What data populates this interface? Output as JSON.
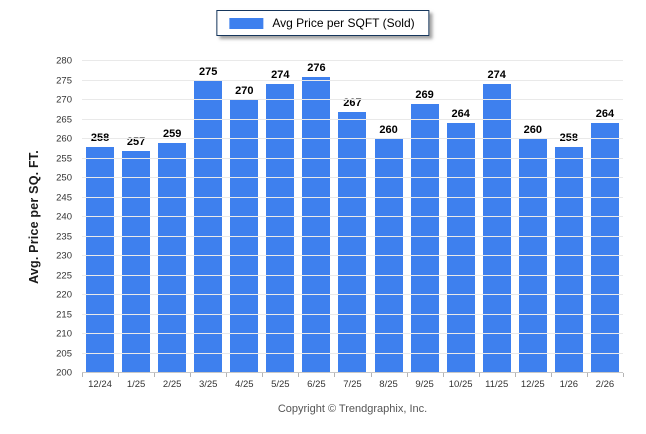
{
  "legend": {
    "label": "Avg Price per SQFT (Sold)",
    "swatch_color": "#3E80EE"
  },
  "chart_data": {
    "type": "bar",
    "title": "",
    "series_name": "Avg Price per SQFT (Sold)",
    "categories": [
      "12/24",
      "1/25",
      "2/25",
      "3/25",
      "4/25",
      "5/25",
      "6/25",
      "7/25",
      "8/25",
      "9/25",
      "10/25",
      "11/25",
      "12/25",
      "1/26",
      "2/26"
    ],
    "values": [
      258,
      257,
      259,
      275,
      270,
      274,
      276,
      267,
      260,
      269,
      264,
      274,
      260,
      258,
      264
    ],
    "xlabel": "",
    "ylabel": "Avg. Price per SQ. FT.",
    "ylim": [
      200,
      280
    ],
    "ytick_step": 5,
    "bar_color": "#3E80EE",
    "grid": true,
    "legend_position": "top-center",
    "value_labels_shown": true
  },
  "footer": {
    "text": "Copyright © Trendgraphix, Inc."
  }
}
